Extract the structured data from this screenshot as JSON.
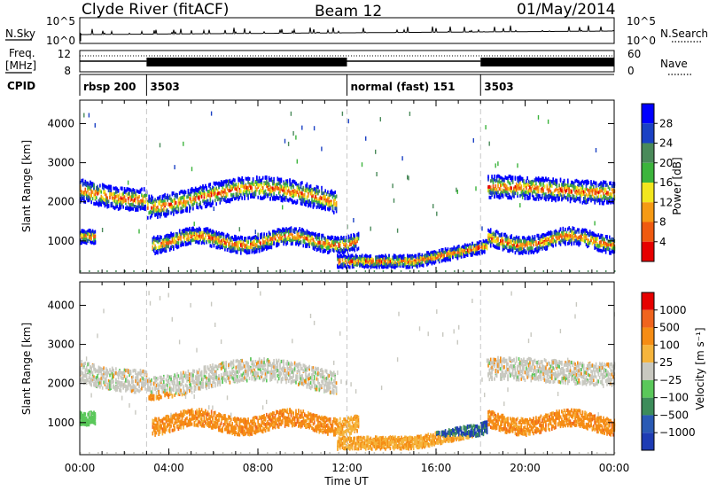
{
  "header": {
    "station": "Clyde River (fitACF)",
    "beam": "Beam 12",
    "date": "01/May/2014"
  },
  "panels": {
    "nsky_label": "N.Sky",
    "nsky_ticks": [
      "10^5",
      "10^0"
    ],
    "nsearch_label": "N.Search",
    "nsearch_ticks": [
      "10^5",
      "10^0"
    ],
    "freq_label_1": "Freq.",
    "freq_label_2": "[MHz]",
    "freq_ticks": [
      "12",
      "8"
    ],
    "nave_label": "Nave",
    "nave_ticks": [
      "60",
      "0"
    ],
    "cpid_label": "CPID",
    "cpid_segments": [
      {
        "label": "rbsp 200",
        "start_hour": 0
      },
      {
        "label": "3503",
        "start_hour": 3
      },
      {
        "label": "normal (fast) 151",
        "start_hour": 12
      },
      {
        "label": "3503",
        "start_hour": 18
      }
    ]
  },
  "chart_data": [
    {
      "type": "heatmap",
      "name": "power",
      "ylabel": "Slant Range [km]",
      "ylim": [
        180,
        4600
      ],
      "yticks": [
        "4000",
        "3000",
        "2000",
        "1000"
      ],
      "xlim_hours": [
        0,
        24
      ],
      "colorbar_label": "Power [dB]",
      "colorbar_ticks": [
        "28",
        "24",
        "20",
        "16",
        "12",
        "8",
        "4"
      ],
      "colorbar_colors": [
        "#0000ff",
        "#1b41c4",
        "#4a8a5a",
        "#3cb43c",
        "#f2e61e",
        "#f59a14",
        "#ef5a10",
        "#e60000"
      ]
    },
    {
      "type": "heatmap",
      "name": "velocity",
      "ylabel": "Slant Range [km]",
      "ylim": [
        180,
        4600
      ],
      "yticks": [
        "4000",
        "3000",
        "2000",
        "1000"
      ],
      "xlim_hours": [
        0,
        24
      ],
      "xlabel": "Time UT",
      "xticks": [
        "00:00",
        "04:00",
        "08:00",
        "12:00",
        "16:00",
        "20:00",
        "00:00"
      ],
      "colorbar_label": "Velocity [m s⁻¹]",
      "colorbar_ticks": [
        "1000",
        "500",
        "100",
        "25",
        "−25",
        "−100",
        "−500",
        "−1000"
      ],
      "colorbar_colors": [
        "#1e3cb4",
        "#2a5ab4",
        "#3c8c5a",
        "#5ac85a",
        "#c8c8c0",
        "#f5b43c",
        "#f58c14",
        "#f0641e",
        "#e60000"
      ]
    }
  ]
}
